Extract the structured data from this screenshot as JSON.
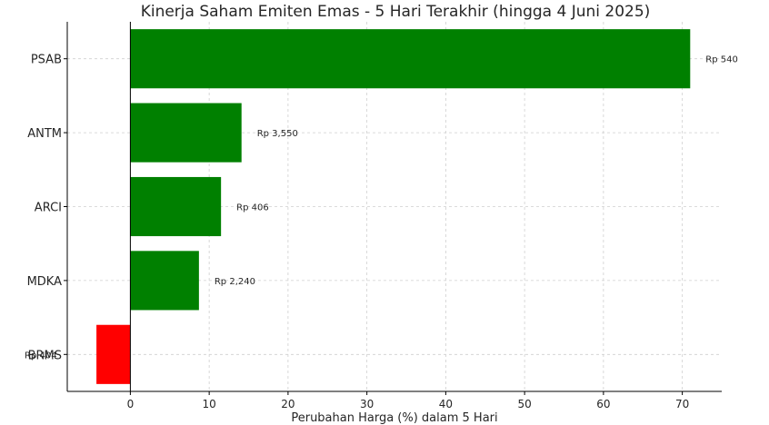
{
  "chart_data": {
    "type": "bar",
    "orientation": "horizontal",
    "title": "Kinerja Saham Emiten Emas - 5 Hari Terakhir (hingga 4 Juni 2025)",
    "xlabel": "Perubahan Harga (%) dalam 5 Hari",
    "ylabel": "",
    "categories": [
      "PSAB",
      "ANTM",
      "ARCI",
      "MDKA",
      "BRMS"
    ],
    "values": [
      71.0,
      14.1,
      11.5,
      8.7,
      -4.3
    ],
    "data_labels": [
      "Rp 540",
      "Rp 3,550",
      "Rp 406",
      "Rp 2,240",
      "Rp 404"
    ],
    "xlim": [
      -8,
      75
    ],
    "xticks": [
      0,
      10,
      20,
      30,
      40,
      50,
      60,
      70
    ],
    "grid": true,
    "colors": {
      "positive": "#008000",
      "negative": "#ff0000"
    }
  }
}
